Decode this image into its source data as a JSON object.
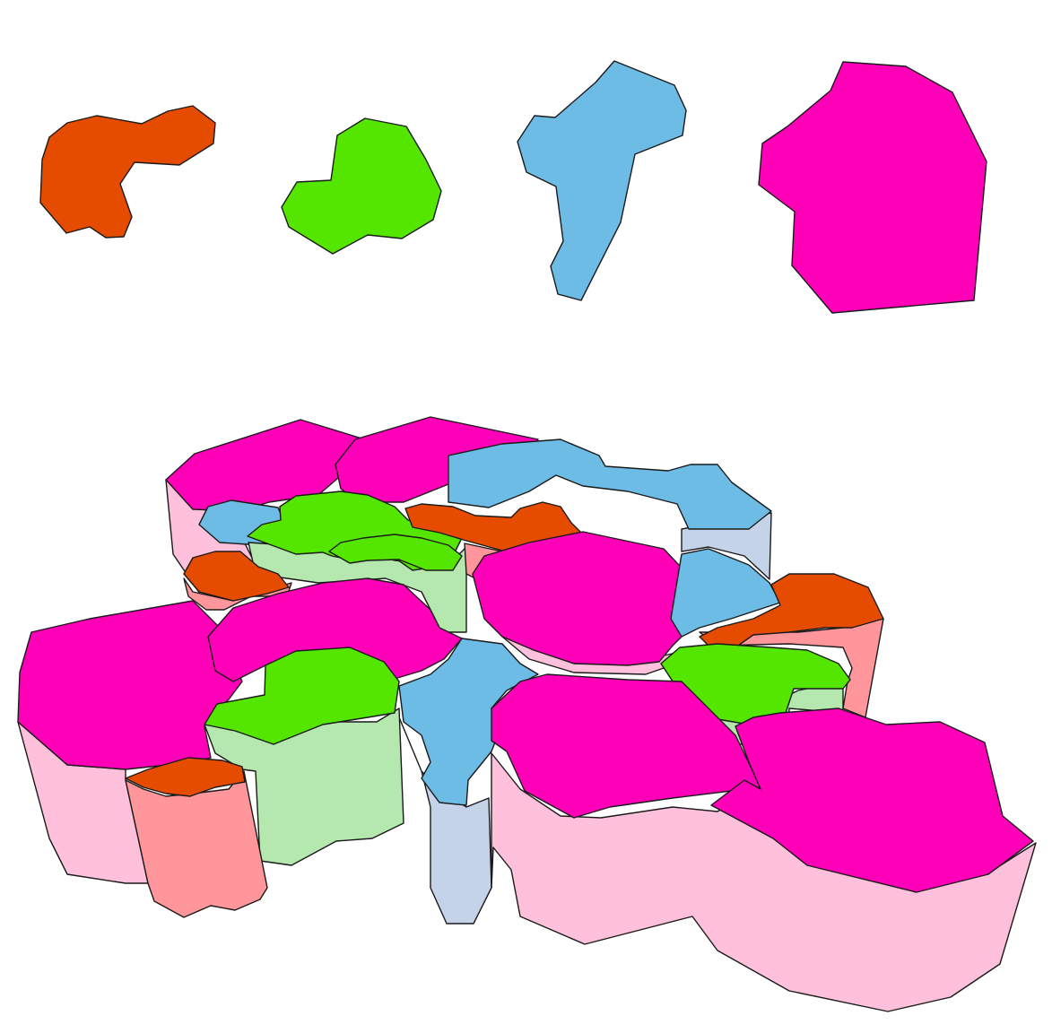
{
  "palette": {
    "orange_top": "#E64C00",
    "orange_side": "#FF969B",
    "green_top": "#55E600",
    "green_side": "#B5E8AF",
    "blue_top": "#6DBCE6",
    "blue_side": "#C5D3E8",
    "magenta_top": "#FF00B8",
    "magenta_side": "#FFC0DC"
  },
  "pieces": [
    {
      "name": "piece-orange",
      "color": "orange",
      "icon": "orange-blob-piece"
    },
    {
      "name": "piece-green",
      "color": "green",
      "icon": "green-blob-piece"
    },
    {
      "name": "piece-blue",
      "color": "blue",
      "icon": "blue-blob-piece"
    },
    {
      "name": "piece-magenta",
      "color": "magenta",
      "icon": "magenta-blob-piece"
    }
  ]
}
